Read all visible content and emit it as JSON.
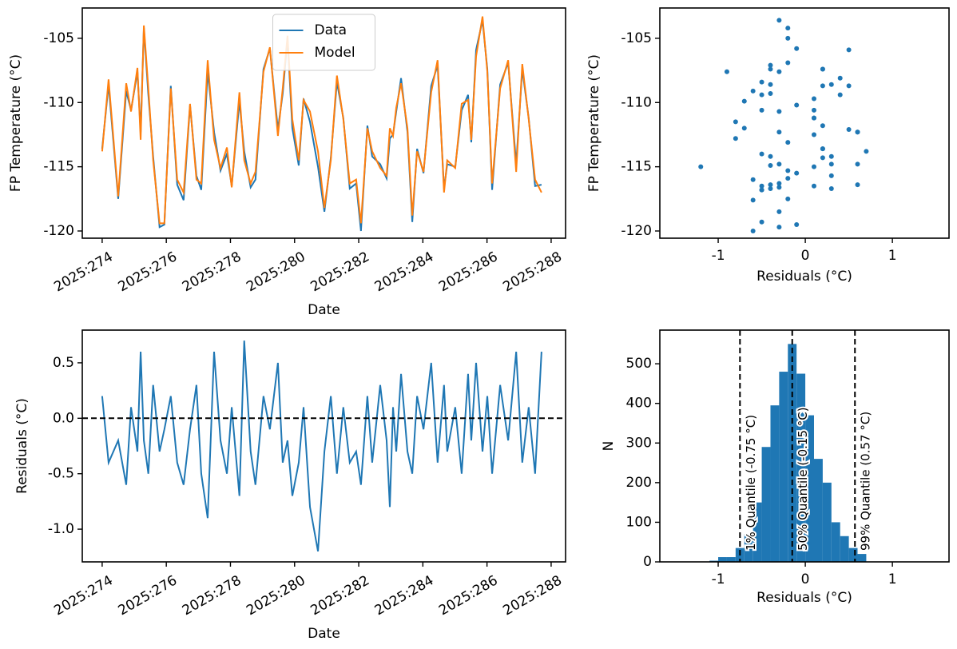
{
  "chart_data": [
    {
      "type": "line",
      "xlabel": "Date",
      "ylabel": "FP Temperature (°C)",
      "legend": "upper center",
      "x": [
        274.0,
        274.2,
        274.5,
        274.75,
        274.9,
        275.1,
        275.2,
        275.3,
        275.44,
        275.59,
        275.79,
        275.94,
        276.14,
        276.34,
        276.54,
        276.74,
        276.94,
        277.09,
        277.29,
        277.49,
        277.69,
        277.89,
        278.04,
        278.28,
        278.43,
        278.63,
        278.78,
        279.03,
        279.23,
        279.48,
        279.63,
        279.78,
        279.93,
        280.13,
        280.28,
        280.48,
        280.73,
        280.93,
        281.13,
        281.32,
        281.52,
        281.72,
        281.92,
        282.07,
        282.27,
        282.42,
        282.67,
        282.87,
        282.97,
        283.07,
        283.17,
        283.32,
        283.52,
        283.67,
        283.82,
        284.02,
        284.26,
        284.46,
        284.66,
        284.76,
        285.01,
        285.21,
        285.41,
        285.51,
        285.66,
        285.86,
        286.01,
        286.16,
        286.41,
        286.66,
        286.91,
        287.1,
        287.3,
        287.5,
        287.7
      ],
      "series": [
        {
          "name": "Data",
          "color": "#1f77b4",
          "values": [
            -113.6,
            -108.6,
            -117.5,
            -109.1,
            -110.6,
            -107.6,
            -112.3,
            -104.2,
            -109.4,
            -114.2,
            -119.7,
            -119.5,
            -108.7,
            -116.4,
            -117.6,
            -110.2,
            -115.7,
            -116.8,
            -107.6,
            -112.3,
            -115.3,
            -114.0,
            -116.5,
            -109.9,
            -113.8,
            -116.6,
            -116.0,
            -107.4,
            -105.8,
            -112.1,
            -109.3,
            -105.0,
            -112.0,
            -114.9,
            -109.7,
            -111.5,
            -115.0,
            -118.5,
            -114.3,
            -108.4,
            -111.2,
            -116.7,
            -116.3,
            -120.0,
            -111.8,
            -114.2,
            -114.8,
            -115.9,
            -112.8,
            -112.5,
            -110.7,
            -108.1,
            -112.3,
            -119.3,
            -113.6,
            -115.5,
            -108.7,
            -107.1,
            -116.7,
            -114.8,
            -115.0,
            -110.6,
            -109.4,
            -113.1,
            -105.9,
            -103.6,
            -107.4,
            -116.8,
            -108.6,
            -106.9,
            -114.8,
            -107.4,
            -111.2,
            -116.5,
            -116.4
          ]
        },
        {
          "name": "Model",
          "color": "#ff7f0e",
          "values": [
            -113.8,
            -108.2,
            -117.3,
            -108.5,
            -110.7,
            -107.3,
            -112.9,
            -104.0,
            -108.9,
            -114.5,
            -119.4,
            -119.4,
            -108.9,
            -116.0,
            -117.0,
            -110.1,
            -116.0,
            -116.3,
            -106.7,
            -112.9,
            -115.1,
            -113.5,
            -116.6,
            -109.2,
            -114.5,
            -116.3,
            -115.4,
            -107.6,
            -105.7,
            -112.6,
            -108.9,
            -104.8,
            -111.3,
            -114.5,
            -109.8,
            -110.7,
            -113.8,
            -118.2,
            -114.5,
            -107.9,
            -111.3,
            -116.3,
            -116.0,
            -119.4,
            -112.0,
            -113.8,
            -115.1,
            -115.7,
            -112.0,
            -112.6,
            -110.4,
            -108.5,
            -112.0,
            -118.8,
            -113.8,
            -115.4,
            -109.2,
            -106.7,
            -117.0,
            -114.5,
            -115.1,
            -110.1,
            -109.8,
            -112.9,
            -106.4,
            -103.3,
            -107.6,
            -116.3,
            -108.9,
            -106.7,
            -115.4,
            -107.0,
            -111.3,
            -116.0,
            -117.0
          ]
        }
      ],
      "xlim": [
        273.38,
        288.45
      ],
      "xticks": [
        {
          "value": 274,
          "label": "2025:274"
        },
        {
          "value": 276,
          "label": "2025:276"
        },
        {
          "value": 278,
          "label": "2025:278"
        },
        {
          "value": 280,
          "label": "2025:280"
        },
        {
          "value": 282,
          "label": "2025:282"
        },
        {
          "value": 284,
          "label": "2025:284"
        },
        {
          "value": 286,
          "label": "2025:286"
        },
        {
          "value": 288,
          "label": "2025:288"
        }
      ],
      "ylim": [
        -120.56,
        -102.64
      ],
      "yticks": [
        -120,
        -115,
        -110,
        -105
      ]
    },
    {
      "type": "scatter",
      "xlabel": "Residuals (°C)",
      "ylabel": "FP Temperature (°C)",
      "color": "#1f77b4",
      "x": [
        0.2,
        -0.4,
        -0.2,
        -0.6,
        0.1,
        -0.3,
        0.6,
        -0.2,
        -0.5,
        0.3,
        -0.3,
        -0.1,
        0.2,
        -0.4,
        -0.6,
        -0.1,
        0.3,
        -0.5,
        -0.9,
        0.6,
        -0.2,
        -0.5,
        0.1,
        -0.7,
        0.7,
        -0.3,
        -0.6,
        0.2,
        -0.1,
        0.5,
        -0.4,
        -0.2,
        -0.7,
        -0.4,
        0.1,
        -0.8,
        -1.2,
        -0.3,
        0.2,
        -0.5,
        0.1,
        -0.4,
        -0.3,
        -0.6,
        0.2,
        -0.4,
        0.3,
        -0.2,
        -0.8,
        0.1,
        -0.3,
        0.4,
        -0.3,
        -0.5,
        0.2,
        -0.1,
        0.5,
        -0.4,
        0.3,
        -0.3,
        0.1,
        -0.5,
        0.4,
        -0.2,
        0.5,
        -0.3,
        0.2,
        -0.5,
        0.3,
        -0.2,
        0.6,
        -0.4,
        0.1,
        -0.5,
        0.6
      ],
      "values": [
        -113.6,
        -108.6,
        -117.5,
        -109.1,
        -110.6,
        -107.6,
        -112.3,
        -104.2,
        -109.4,
        -114.2,
        -119.7,
        -119.5,
        -108.7,
        -116.4,
        -117.6,
        -110.2,
        -115.7,
        -116.8,
        -107.6,
        -112.3,
        -115.3,
        -114.0,
        -116.5,
        -109.9,
        -113.8,
        -116.6,
        -116.0,
        -107.4,
        -105.8,
        -112.1,
        -109.3,
        -105.0,
        -112.0,
        -114.9,
        -109.7,
        -111.5,
        -115.0,
        -118.5,
        -114.3,
        -108.4,
        -111.2,
        -116.7,
        -116.3,
        -120.0,
        -111.8,
        -114.2,
        -114.8,
        -115.9,
        -112.8,
        -112.5,
        -110.7,
        -108.1,
        -112.3,
        -119.3,
        -113.6,
        -115.5,
        -108.7,
        -107.1,
        -116.7,
        -114.8,
        -115.0,
        -110.6,
        -109.4,
        -113.1,
        -105.9,
        -103.6,
        -107.4,
        -116.8,
        -108.6,
        -106.9,
        -114.8,
        -107.4,
        -111.2,
        -116.5,
        -116.4
      ],
      "xlim": [
        -1.67,
        1.65
      ],
      "xticks": [
        -1,
        0,
        1
      ],
      "ylim": [
        -120.56,
        -102.64
      ],
      "yticks": [
        -120,
        -115,
        -110,
        -105
      ]
    },
    {
      "type": "line",
      "xlabel": "Date",
      "ylabel": "Residuals (°C)",
      "color": "#1f77b4",
      "hline": 0,
      "x": [
        274.0,
        274.2,
        274.5,
        274.75,
        274.9,
        275.1,
        275.2,
        275.3,
        275.44,
        275.59,
        275.79,
        275.94,
        276.14,
        276.34,
        276.54,
        276.74,
        276.94,
        277.09,
        277.29,
        277.49,
        277.69,
        277.89,
        278.04,
        278.28,
        278.43,
        278.63,
        278.78,
        279.03,
        279.23,
        279.48,
        279.63,
        279.78,
        279.93,
        280.13,
        280.28,
        280.48,
        280.73,
        280.93,
        281.13,
        281.32,
        281.52,
        281.72,
        281.92,
        282.07,
        282.27,
        282.42,
        282.67,
        282.87,
        282.97,
        283.07,
        283.17,
        283.32,
        283.52,
        283.67,
        283.82,
        284.02,
        284.26,
        284.46,
        284.66,
        284.76,
        285.01,
        285.21,
        285.41,
        285.51,
        285.66,
        285.86,
        286.01,
        286.16,
        286.41,
        286.66,
        286.91,
        287.1,
        287.3,
        287.5,
        287.7
      ],
      "values": [
        0.2,
        -0.4,
        -0.2,
        -0.6,
        0.1,
        -0.3,
        0.6,
        -0.2,
        -0.5,
        0.3,
        -0.3,
        -0.1,
        0.2,
        -0.4,
        -0.6,
        -0.1,
        0.3,
        -0.5,
        -0.9,
        0.6,
        -0.2,
        -0.5,
        0.1,
        -0.7,
        0.7,
        -0.3,
        -0.6,
        0.2,
        -0.1,
        0.5,
        -0.4,
        -0.2,
        -0.7,
        -0.4,
        0.1,
        -0.8,
        -1.2,
        -0.3,
        0.2,
        -0.5,
        0.1,
        -0.4,
        -0.3,
        -0.6,
        0.2,
        -0.4,
        0.3,
        -0.2,
        -0.8,
        0.1,
        -0.3,
        0.4,
        -0.3,
        -0.5,
        0.2,
        -0.1,
        0.5,
        -0.4,
        0.3,
        -0.3,
        0.1,
        -0.5,
        0.4,
        -0.2,
        0.5,
        -0.3,
        0.2,
        -0.5,
        0.3,
        -0.2,
        0.6,
        -0.4,
        0.1,
        -0.5,
        0.6
      ],
      "xlim": [
        273.38,
        288.45
      ],
      "xticks": [
        {
          "value": 274,
          "label": "2025:274"
        },
        {
          "value": 276,
          "label": "2025:276"
        },
        {
          "value": 278,
          "label": "2025:278"
        },
        {
          "value": 280,
          "label": "2025:280"
        },
        {
          "value": 282,
          "label": "2025:282"
        },
        {
          "value": 284,
          "label": "2025:284"
        },
        {
          "value": 286,
          "label": "2025:286"
        },
        {
          "value": 288,
          "label": "2025:288"
        }
      ],
      "ylim": [
        -1.295,
        0.795
      ],
      "yticks": [
        {
          "value": -1,
          "label": "-1.0"
        },
        -0.5,
        {
          "value": 0,
          "label": "0.0"
        },
        0.5
      ]
    },
    {
      "type": "histogram",
      "xlabel": "Residuals (°C)",
      "ylabel": "N",
      "color": "#1f77b4",
      "bins": [
        -1.2,
        -1.1,
        -1.0,
        -0.9,
        -0.8,
        -0.7,
        -0.6,
        -0.5,
        -0.4,
        -0.3,
        -0.2,
        -0.1,
        0.0,
        0.1,
        0.2,
        0.3,
        0.4,
        0.5,
        0.6,
        0.7
      ],
      "values": [
        1,
        3,
        12,
        12,
        35,
        70,
        150,
        290,
        395,
        480,
        550,
        475,
        370,
        260,
        200,
        100,
        65,
        35,
        20
      ],
      "vlines": [
        {
          "value": -0.75,
          "label": "1% Quantile (-0.75 °C)"
        },
        {
          "value": -0.15,
          "label": "50% Quantile (-0.15 °C)"
        },
        {
          "value": 0.57,
          "label": "99% Quantile (0.57 °C)"
        }
      ],
      "xlim": [
        -1.67,
        1.65
      ],
      "xticks": [
        -1,
        0,
        1
      ],
      "ylim": [
        0,
        585
      ],
      "yticks": [
        0,
        100,
        200,
        300,
        400,
        500
      ]
    }
  ]
}
